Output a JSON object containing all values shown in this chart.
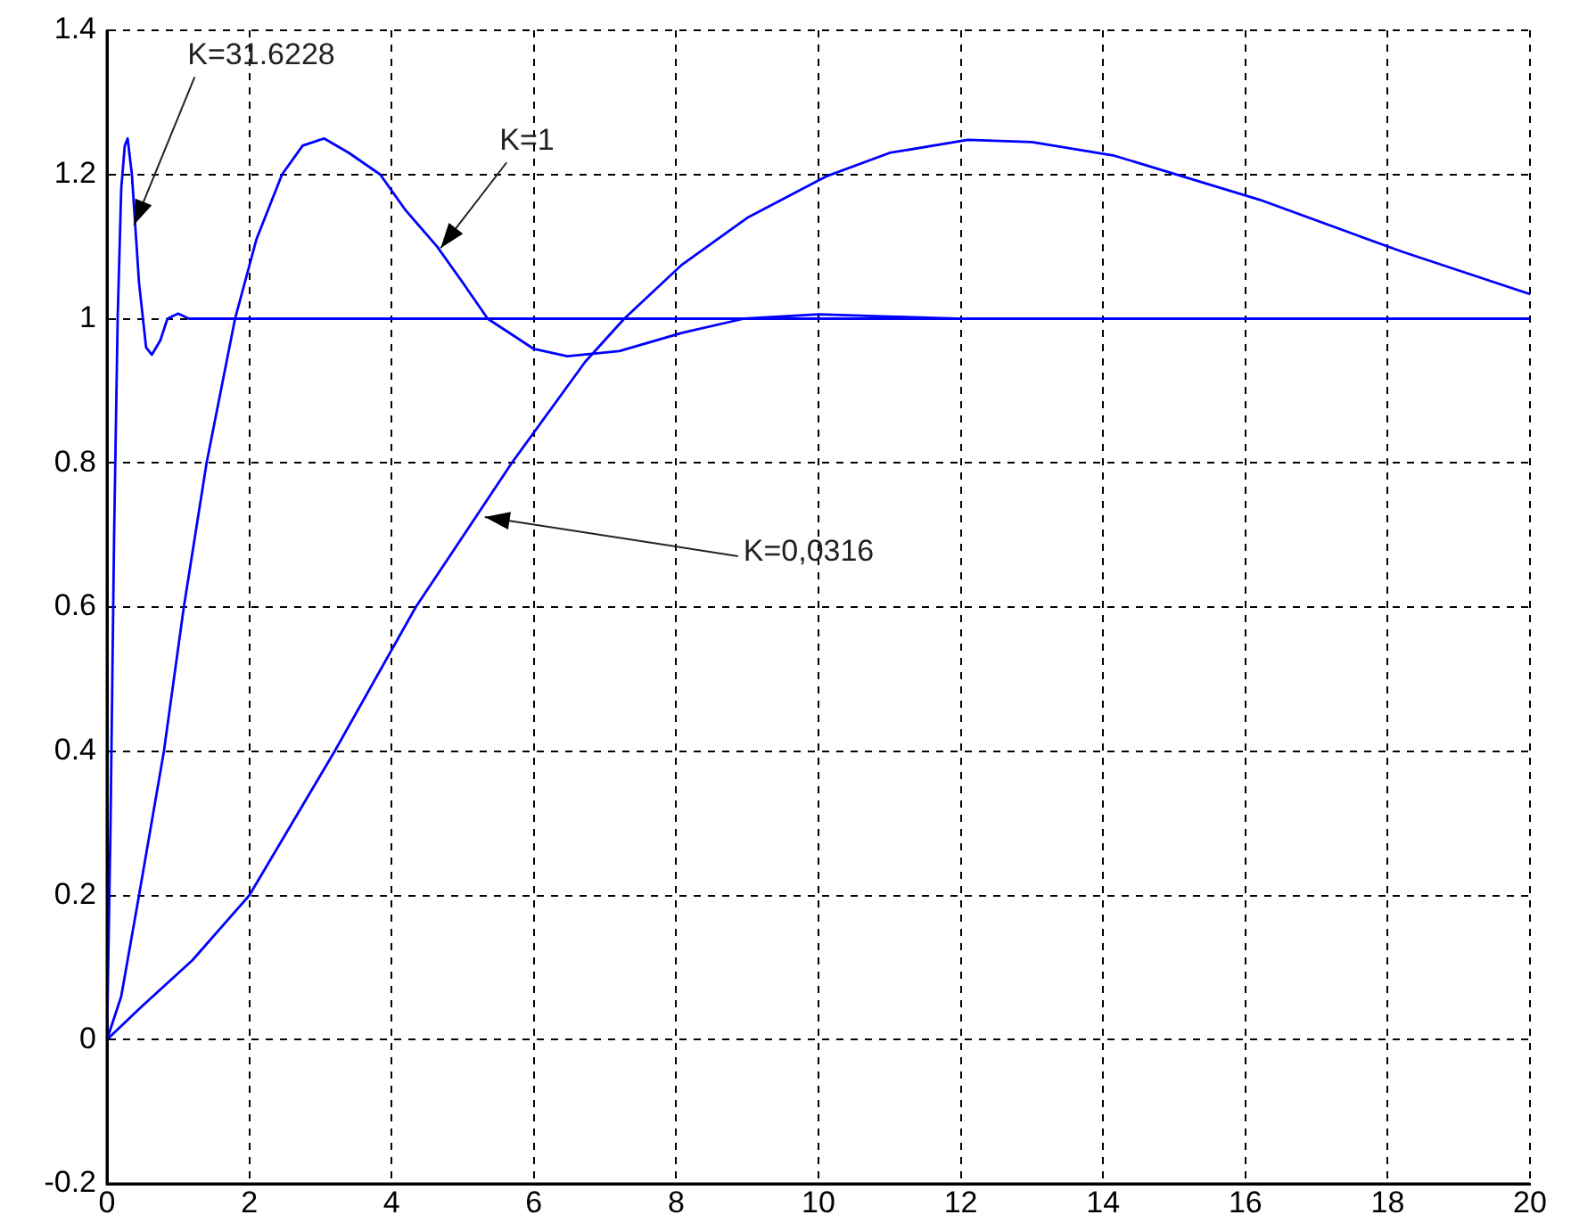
{
  "chart_data": {
    "type": "line",
    "grid": true,
    "marker": "none",
    "line_style": "solid",
    "legend": false,
    "xlim": [
      0,
      20
    ],
    "xticks": [
      0,
      2,
      4,
      6,
      8,
      10,
      12,
      14,
      16,
      18,
      20
    ],
    "ylim": [
      -0.2,
      1.4
    ],
    "yticks": [
      -0.2,
      0,
      0.2,
      0.4,
      0.6,
      0.8,
      1,
      1.2,
      1.4
    ],
    "series": [
      {
        "color": "#0000ff",
        "x": [
          0,
          0.05,
          0.1,
          0.15,
          0.2,
          0.25,
          0.29,
          0.35,
          0.45,
          0.55,
          0.63,
          0.75,
          0.85,
          1.0,
          1.15,
          20
        ],
        "values": [
          0,
          0.3,
          0.7,
          1.0,
          1.18,
          1.24,
          1.25,
          1.2,
          1.05,
          0.96,
          0.95,
          0.97,
          1.0,
          1.007,
          1.0,
          1.0
        ]
      },
      {
        "color": "#0000ff",
        "x": [
          0,
          0.2,
          0.45,
          0.8,
          1.08,
          1.4,
          1.68,
          1.8,
          2.1,
          2.46,
          2.75,
          3.05,
          3.4,
          3.84,
          4.2,
          4.64,
          5.0,
          5.35,
          6.0,
          6.47,
          7.2,
          8.07,
          8.95,
          10,
          11,
          11.95
        ],
        "values": [
          0,
          0.06,
          0.2,
          0.4,
          0.6,
          0.8,
          0.94,
          1.0,
          1.11,
          1.2,
          1.24,
          1.25,
          1.23,
          1.2,
          1.15,
          1.1,
          1.05,
          1.0,
          0.958,
          0.948,
          0.955,
          0.98,
          1.0,
          1.006,
          1.003,
          1.0
        ]
      },
      {
        "color": "#0000ff",
        "x": [
          0,
          0.5,
          1.2,
          2.0,
          3.2,
          4.34,
          5.69,
          6.72,
          7.27,
          8.07,
          9.0,
          10.1,
          11.0,
          12.1,
          13.0,
          14.16,
          16.2,
          18.2,
          20
        ],
        "values": [
          0,
          0.047,
          0.11,
          0.2,
          0.4,
          0.6,
          0.8,
          0.94,
          1.0,
          1.074,
          1.14,
          1.197,
          1.23,
          1.248,
          1.245,
          1.226,
          1.165,
          1.093,
          1.034
        ]
      }
    ],
    "annotations": [
      {
        "text": "K=31.6228",
        "x": 0.38,
        "y": 1.13
      },
      {
        "text": "K=1",
        "x": 4.69,
        "y": 1.098
      },
      {
        "text": "K=0,0316",
        "x": 5.31,
        "y": 0.725
      }
    ]
  }
}
